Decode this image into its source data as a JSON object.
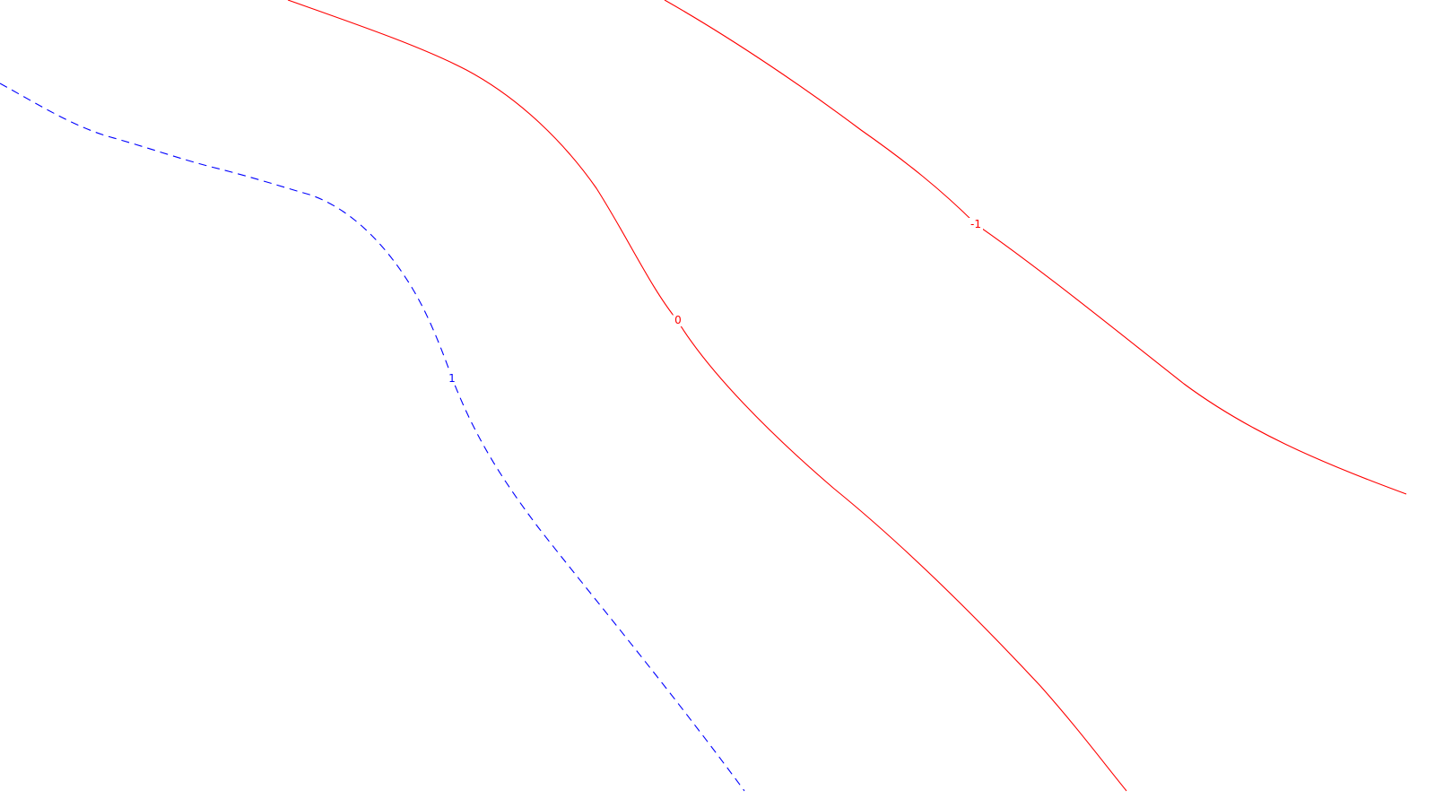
{
  "chart_data": {
    "type": "contour",
    "grid": false,
    "series": [
      {
        "label": "1",
        "level": 1,
        "color": "#0000ff",
        "dashed": true
      },
      {
        "label": "0",
        "level": 0,
        "color": "#ff0000",
        "dashed": false
      },
      {
        "label": "-1",
        "level": -1,
        "color": "#ff0000",
        "dashed": false
      }
    ]
  }
}
